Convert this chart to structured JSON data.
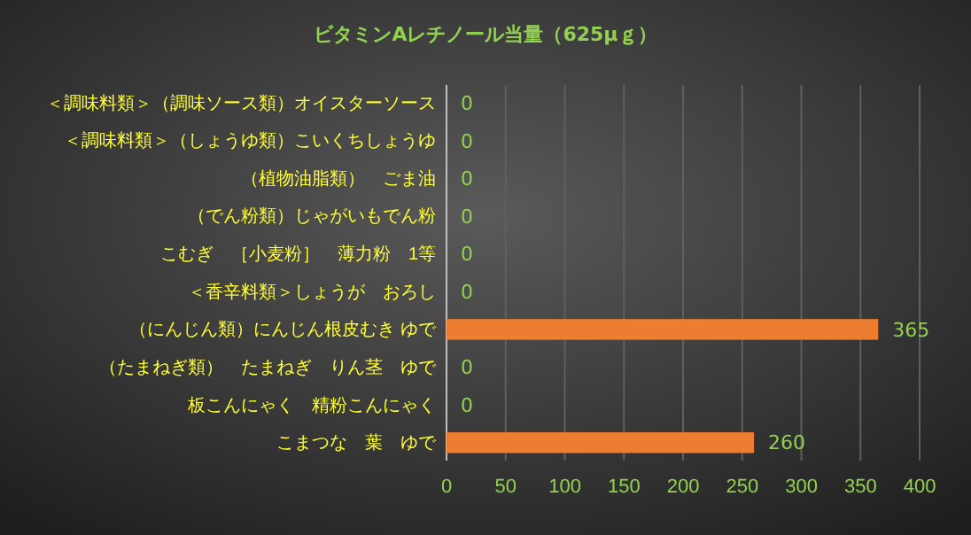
{
  "chart_data": {
    "type": "bar",
    "orientation": "horizontal",
    "title": "ビタミンAレチノール当量（625μｇ）",
    "categories": [
      "＜調味料類＞（調味ソース類）オイスターソース",
      "＜調味料類＞（しょうゆ類）こいくちしょうゆ",
      "（植物油脂類）　ごま油",
      "（でん粉類）じゃがいもでん粉",
      "こむぎ　［小麦粉］　薄力粉　1等",
      "＜香辛料類＞しょうが　おろし",
      "（にんじん類）にんじん根皮むき ゆで",
      "（たまねぎ類）　たまねぎ　りん茎　ゆで",
      "板こんにゃく　精粉こんにゃく",
      "こまつな　葉　ゆで"
    ],
    "values": [
      0,
      0,
      0,
      0,
      0,
      0,
      365,
      0,
      0,
      260
    ],
    "color": "#ed7d31",
    "data_labels": true,
    "grid": "x",
    "xlim": [
      0,
      400
    ],
    "xticks": [
      0,
      50,
      100,
      150,
      200,
      250,
      300,
      350,
      400
    ]
  }
}
